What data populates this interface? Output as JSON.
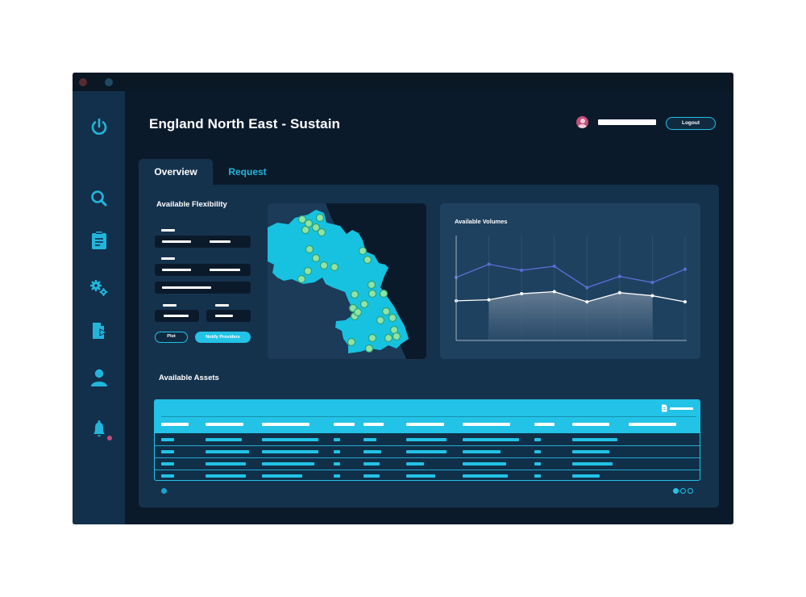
{
  "window": {
    "title": ""
  },
  "sidebar": {
    "items": [
      {
        "name": "power",
        "icon": "power-icon"
      },
      {
        "name": "search",
        "icon": "search-icon"
      },
      {
        "name": "clipboard",
        "icon": "clipboard-icon"
      },
      {
        "name": "settings",
        "icon": "gears-icon"
      },
      {
        "name": "document-export",
        "icon": "document-arrow-icon"
      },
      {
        "name": "user",
        "icon": "user-icon"
      },
      {
        "name": "notifications",
        "icon": "bell-icon",
        "badge": true
      }
    ]
  },
  "header": {
    "title": "England North East - Sustain",
    "user": {
      "avatar_icon": "avatar-icon",
      "name": ""
    },
    "logout_label": "Logout"
  },
  "tabs": [
    {
      "label": "Overview",
      "active": true
    },
    {
      "label": "Request",
      "active": false
    }
  ],
  "flexibility": {
    "title": "Available Flexibility",
    "plot_label": "Plot",
    "notify_label": "Notify Providers"
  },
  "map": {
    "region": "England North East",
    "site_marker_count": 31
  },
  "chart_data": {
    "type": "line",
    "title": "Available Volumes",
    "x": [
      1,
      2,
      3,
      4,
      5,
      6,
      7,
      8
    ],
    "series": [
      {
        "values": [
          0.62,
          0.75,
          0.69,
          0.73,
          0.52,
          0.63,
          0.57,
          0.7
        ]
      },
      {
        "values": [
          0.39,
          0.4,
          0.46,
          0.48,
          0.38,
          0.47,
          0.44,
          0.38
        ]
      }
    ],
    "ylim": [
      0,
      1
    ],
    "grid": true
  },
  "assets": {
    "title": "Available Assets",
    "columns": 10,
    "rows": 4,
    "export_icon": "document-icon"
  },
  "pagination": {
    "pages": 3,
    "current": 1
  },
  "colors": {
    "accent": "#22c3e6",
    "background": "#0b1a2b",
    "panel": "#15324d",
    "sidebar": "#12304b",
    "series_primary": "#5b6fd6",
    "series_secondary": "#ffffff",
    "map_fill": "#16c2e0",
    "marker": "#8fe3a6"
  }
}
